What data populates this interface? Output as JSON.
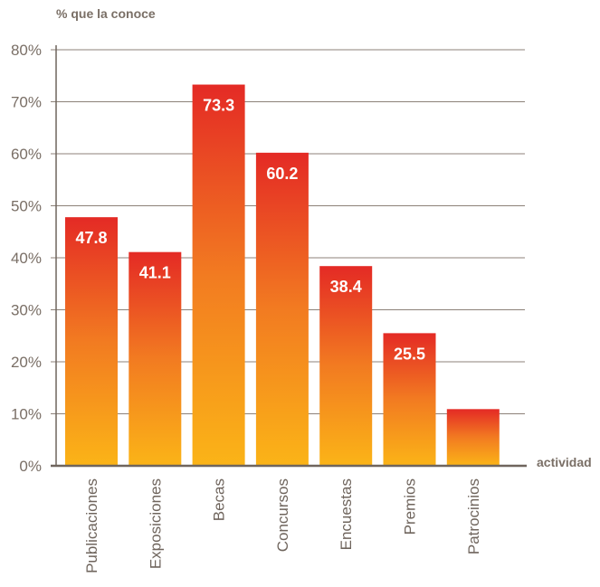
{
  "chart_data": {
    "type": "bar",
    "ylabel": "% que la conoce",
    "xlabel": "actividad",
    "categories": [
      "Publicaciones",
      "Exposiciones",
      "Becas",
      "Concursos",
      "Encuestas",
      "Premios",
      "Patrocinios"
    ],
    "values": [
      47.8,
      41.1,
      73.3,
      60.2,
      38.4,
      25.5,
      10.9
    ],
    "value_labels": [
      "47.8",
      "41.1",
      "73.3",
      "60.2",
      "38.4",
      "25.5",
      ""
    ],
    "ylim": [
      0,
      80
    ],
    "yticks": [
      "0%",
      "10%",
      "20%",
      "30%",
      "40%",
      "50%",
      "60%",
      "70%",
      "80%"
    ],
    "grid": true,
    "colors": {
      "bar_top": "#e42a25",
      "bar_bottom": "#fbb417",
      "axis": "#6f655d",
      "grid": "#8c8178"
    }
  }
}
